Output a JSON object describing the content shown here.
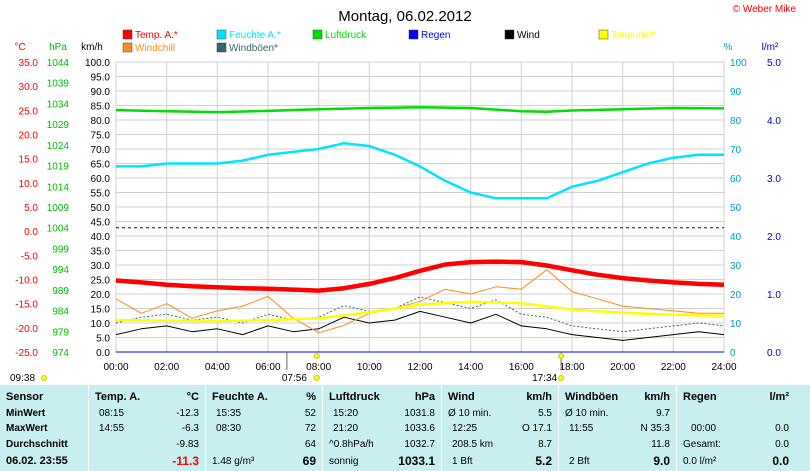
{
  "header": {
    "title": "Montag, 06.02.2012",
    "copyright": "© Weber Mike"
  },
  "colors": {
    "temp": "#ff0000",
    "humidity": "#00e5ff",
    "pressure": "#00dd00",
    "rain": "#0000ff",
    "wind": "#000000",
    "dewpoint": "#ffff00",
    "windchill": "#ff8c1a",
    "gust": "#336666",
    "temp_axis": "#ff0000",
    "pressure_axis": "#00bb00",
    "humidity_axis": "#00a0c0",
    "rain_axis": "#0000cc"
  },
  "legend": [
    {
      "label": "Temp. A.*",
      "color": "#ff0000"
    },
    {
      "label": "Feuchte A.*",
      "color": "#00e5ff"
    },
    {
      "label": "Luftdruck",
      "color": "#00dd00"
    },
    {
      "label": "Regen",
      "color": "#0000ff"
    },
    {
      "label": "Wind",
      "color": "#000000"
    },
    {
      "label": "Taupunkt*",
      "color": "#ffff00"
    },
    {
      "label": "Windchill",
      "color": "#ff8c1a"
    },
    {
      "label": "Windböen*",
      "color": "#336666"
    }
  ],
  "chart_data": {
    "type": "line",
    "x_ticks": [
      "00:00",
      "02:00",
      "04:00",
      "06:00",
      "08:00",
      "10:00",
      "12:00",
      "14:00",
      "16:00",
      "18:00",
      "20:00",
      "22:00",
      "24:00"
    ],
    "axes": {
      "temp": {
        "unit": "°C",
        "ticks": [
          "35.0",
          "30.0",
          "25.0",
          "20.0",
          "15.0",
          "10.0",
          "5.0",
          "0.0",
          "-5.0",
          "-10.0",
          "-15.0",
          "-20.0",
          "-25.0"
        ],
        "range": [
          -25,
          35
        ]
      },
      "pressure": {
        "unit": "hPa",
        "ticks": [
          "1044",
          "1039",
          "1034",
          "1029",
          "1024",
          "1019",
          "1014",
          "1009",
          "1004",
          "999",
          "994",
          "989",
          "984",
          "979",
          "974"
        ],
        "range": [
          974,
          1044
        ]
      },
      "wind": {
        "unit": "km/h",
        "ticks": [
          "100.0",
          "95.0",
          "90.0",
          "85.0",
          "80.0",
          "75.0",
          "70.0",
          "65.0",
          "60.0",
          "55.0",
          "50.0",
          "45.0",
          "40.0",
          "35.0",
          "30.0",
          "25.0",
          "20.0",
          "15.0",
          "10.0",
          "5.0",
          "0.0"
        ],
        "range": [
          0,
          100
        ]
      },
      "humidity": {
        "unit": "%",
        "ticks": [
          "100",
          "90",
          "80",
          "70",
          "60",
          "50",
          "40",
          "30",
          "20",
          "10",
          "0"
        ],
        "range": [
          0,
          100
        ]
      },
      "rain": {
        "unit": "l/m²",
        "ticks": [
          "5.0",
          "4.0",
          "3.0",
          "2.0",
          "1.0",
          "0.0"
        ],
        "range": [
          0,
          5
        ]
      }
    },
    "series": [
      {
        "name": "Temp. A.*",
        "axis": "temp",
        "x": [
          0,
          1,
          2,
          3,
          4,
          5,
          6,
          7,
          8,
          9,
          10,
          11,
          12,
          13,
          14,
          15,
          16,
          17,
          18,
          19,
          20,
          21,
          22,
          23,
          24
        ],
        "values": [
          -10.2,
          -10.6,
          -11.1,
          -11.4,
          -11.6,
          -11.8,
          -11.9,
          -12.1,
          -12.3,
          -11.8,
          -10.9,
          -9.7,
          -8.2,
          -6.9,
          -6.4,
          -6.3,
          -6.4,
          -7.1,
          -8.1,
          -9.0,
          -9.7,
          -10.2,
          -10.6,
          -10.9,
          -11.1
        ]
      },
      {
        "name": "Feuchte A.*",
        "axis": "humidity",
        "x": [
          0,
          1,
          2,
          3,
          4,
          5,
          6,
          7,
          8,
          9,
          10,
          11,
          12,
          13,
          14,
          15,
          16,
          17,
          18,
          19,
          20,
          21,
          22,
          23,
          24
        ],
        "values": [
          64,
          64,
          65,
          65,
          65,
          66,
          68,
          69,
          70,
          72,
          71,
          68,
          64,
          59,
          55,
          53,
          53,
          53,
          57,
          59,
          62,
          65,
          67,
          68,
          68
        ]
      },
      {
        "name": "Luftdruck",
        "axis": "pressure",
        "x": [
          0,
          2,
          4,
          6,
          8,
          10,
          12,
          14,
          16,
          17,
          18,
          20,
          22,
          24
        ],
        "values": [
          1032.4,
          1032.1,
          1031.9,
          1032.2,
          1032.6,
          1032.9,
          1033.1,
          1032.9,
          1032.1,
          1032.0,
          1032.3,
          1032.6,
          1032.9,
          1032.8
        ]
      },
      {
        "name": "Taupunkt*",
        "axis": "temp",
        "x": [
          0,
          2,
          4,
          6,
          8,
          10,
          12,
          14,
          16,
          18,
          20,
          22,
          24
        ],
        "values": [
          -18.4,
          -18.5,
          -18.6,
          -18.4,
          -18.0,
          -16.8,
          -15.2,
          -14.6,
          -14.9,
          -16.2,
          -16.9,
          -17.3,
          -17.5
        ]
      },
      {
        "name": "Windchill",
        "axis": "temp",
        "x": [
          0,
          1,
          2,
          3,
          4,
          5,
          6,
          7,
          8,
          9,
          10,
          11,
          12,
          13,
          14,
          15,
          16,
          17,
          18,
          19,
          20,
          21,
          22,
          23,
          24
        ],
        "values": [
          -14.0,
          -17.0,
          -15.0,
          -18.0,
          -16.5,
          -15.5,
          -13.5,
          -18.0,
          -21.0,
          -19.5,
          -17.0,
          -16.0,
          -14.5,
          -12.0,
          -13.0,
          -11.5,
          -12.0,
          -8.0,
          -12.5,
          -14.0,
          -15.5,
          -16.0,
          -16.5,
          -17.0,
          -17.0
        ]
      },
      {
        "name": "Wind",
        "axis": "wind",
        "x": [
          0,
          1,
          2,
          3,
          4,
          5,
          6,
          7,
          8,
          9,
          10,
          11,
          12,
          13,
          14,
          15,
          16,
          17,
          18,
          19,
          20,
          21,
          22,
          23,
          24
        ],
        "values": [
          6,
          8,
          9,
          7,
          8,
          6,
          9,
          7,
          8,
          12,
          10,
          11,
          14,
          12,
          10,
          13,
          9,
          8,
          6,
          5,
          4,
          5,
          6,
          7,
          6
        ]
      },
      {
        "name": "Windböen*",
        "axis": "wind",
        "x": [
          0,
          1,
          2,
          3,
          4,
          5,
          6,
          7,
          8,
          9,
          10,
          11,
          12,
          13,
          14,
          15,
          16,
          17,
          18,
          19,
          20,
          21,
          22,
          23,
          24
        ],
        "values": [
          10,
          12,
          13,
          11,
          12,
          10,
          13,
          11,
          12,
          16,
          14,
          15,
          19,
          17,
          15,
          18,
          13,
          12,
          9,
          8,
          7,
          8,
          9,
          10,
          9
        ]
      },
      {
        "name": "Regen",
        "axis": "rain",
        "x": [
          0,
          24
        ],
        "values": [
          0,
          0
        ]
      }
    ],
    "reference_line": {
      "axis": "pressure",
      "value": 1004
    },
    "sun": {
      "sunrise": "07:56",
      "sunset": "17:34",
      "sunrise_hour": 7.93,
      "sunset_hour": 17.57
    },
    "timestamp": "09:38"
  },
  "table": {
    "row_labels": [
      "Sensor",
      "MinWert",
      "MaxWert",
      "Durchschnitt",
      "06.02. 23:55"
    ],
    "temp": {
      "title": "Temp. A.",
      "unit": "°C",
      "min_time": "08:15",
      "min": "-12.3",
      "max_time": "14:55",
      "max": "-6.3",
      "avg": "-9.83",
      "current": "-11.3"
    },
    "humidity": {
      "title": "Feuchte A.",
      "unit": "%",
      "min_time": "15:35",
      "min": "52",
      "max_time": "08:30",
      "max": "72",
      "avg": "64",
      "current_extra": "1.48 g/m³",
      "current": "69"
    },
    "pressure": {
      "title": "Luftdruck",
      "unit": "hPa",
      "min_time": "15:20",
      "min": "1031.8",
      "max_time": "21:20",
      "max": "1033.6",
      "trend_label": "^0.8hPa/h",
      "trend": "1032.7",
      "sky": "sonnig",
      "current": "1033.1"
    },
    "wind": {
      "title": "Wind",
      "unit": "km/h",
      "l1": "Ø 10 min.",
      "v1": "5.5",
      "l2a": "12:25",
      "l2b": "O 17.1",
      "l3": "208.5 km",
      "v3": "8.7",
      "l4": "1 Bft",
      "current": "5.2"
    },
    "gust": {
      "title": "Windböen",
      "unit": "km/h",
      "l1": "Ø 10 min.",
      "v1": "9.7",
      "l2a": "11:55",
      "l2b": "N 35.3",
      "v3": "11.8",
      "l4": "2 Bft",
      "current": "9.0"
    },
    "rain": {
      "title": "Regen",
      "unit": "l/m²",
      "l2a": "00:00",
      "v2": "0.0",
      "l3": "Gesamt:",
      "v3": "0.0",
      "l4": "0.0 l/m²",
      "current": "0.0"
    }
  }
}
